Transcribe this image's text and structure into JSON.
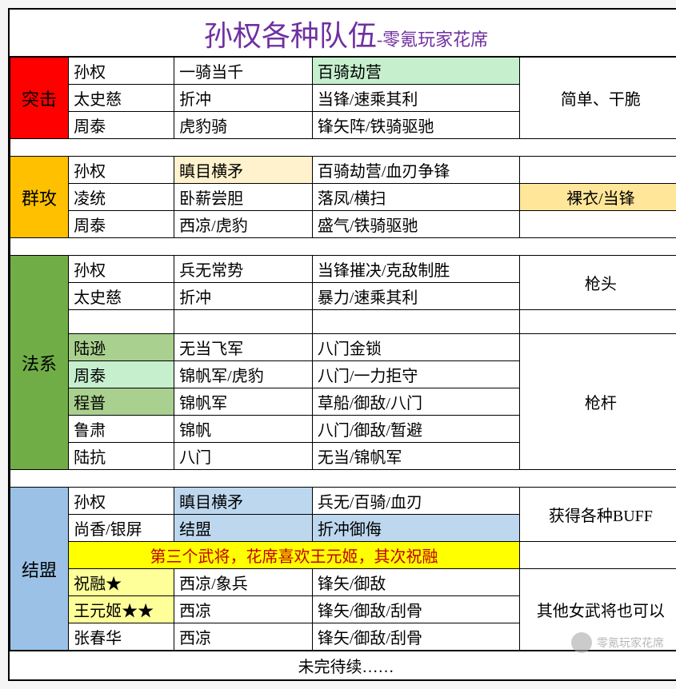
{
  "title": {
    "main": "孙权各种队伍",
    "sub": "-零氪玩家花席"
  },
  "colw": {
    "cat": 72,
    "hero": 130,
    "skill1": 170,
    "skill2": 255,
    "note": 200
  },
  "sections": [
    {
      "cat": "突击",
      "cat_bg": "bg-red",
      "rows": [
        {
          "hero": "孙权",
          "s1": "一骑当千",
          "s2": "百骑劫营",
          "s2_bg": "bg-green-lt"
        },
        {
          "hero": "太史慈",
          "s1": "折冲",
          "s2": "当锋/速乘其利"
        },
        {
          "hero": "周泰",
          "s1": "虎豹骑",
          "s2": "锋矢阵/铁骑驱驰"
        }
      ],
      "notes": [
        {
          "text": "简单、干脆",
          "span": 3
        }
      ]
    },
    {
      "cat": "群攻",
      "cat_bg": "bg-orange",
      "rows": [
        {
          "hero": "孙权",
          "s1": "瞋目横矛",
          "s1_bg": "bg-tan-lt",
          "s2": "百骑劫营/血刃争锋"
        },
        {
          "hero": "凌统",
          "s1": "卧薪尝胆",
          "s2": "落凤/横扫"
        },
        {
          "hero": "周泰",
          "s1": "西凉/虎豹",
          "s2": "盛气/铁骑驱驰"
        }
      ],
      "notes": [
        {
          "text": "",
          "span": 1
        },
        {
          "text": "裸衣/当锋",
          "span": 1,
          "bg": "bg-tan-lt2"
        },
        {
          "text": "",
          "span": 1
        }
      ]
    },
    {
      "cat": "法系",
      "cat_bg": "bg-green4",
      "rows": [
        {
          "hero": "孙权",
          "s1": "兵无常势",
          "s2": "当锋摧决/克敌制胜"
        },
        {
          "hero": "太史慈",
          "s1": "折冲",
          "s2": "暴力/速乘其利"
        },
        {
          "hero": "",
          "s1": "",
          "s2": ""
        },
        {
          "hero": "陆逊",
          "hero_bg": "bg-green-med",
          "s1": "无当飞军",
          "s2": "八门金锁"
        },
        {
          "hero": "周泰",
          "hero_bg": "bg-green-lt",
          "s1": "锦帆军/虎豹",
          "s2": "八门/一力拒守"
        },
        {
          "hero": "程普",
          "hero_bg": "bg-green-med",
          "s1": "锦帆军",
          "s2": "草船/御敌/八门"
        },
        {
          "hero": "鲁肃",
          "s1": "锦帆",
          "s2": "八门/御敌/暂避"
        },
        {
          "hero": "陆抗",
          "s1": "八门",
          "s2": "无当/锦帆军"
        }
      ],
      "notes": [
        {
          "text": "枪头",
          "span": 2
        },
        {
          "text": "",
          "span": 1
        },
        {
          "text": "枪杆",
          "span": 5
        }
      ]
    },
    {
      "cat": "结盟",
      "cat_bg": "bg-blue",
      "rows": [
        {
          "hero": "孙权",
          "s1": "瞋目横矛",
          "s1_bg": "bg-blue-lt",
          "s2": "兵无/百骑/血刃"
        },
        {
          "hero": "尚香/银屏",
          "s1": "结盟",
          "s1_bg": "bg-blue-lt",
          "s2": "折冲御侮",
          "s2_bg": "bg-blue-lt"
        },
        {
          "full": "第三个武将，花席喜欢王元姬，其次祝融",
          "full_bg": "yellow-row"
        },
        {
          "hero": "祝融★",
          "hero_bg": "bg-yellow-lt",
          "s1": "西凉/象兵",
          "s2": "锋矢/御敌"
        },
        {
          "hero": "王元姬★★",
          "hero_bg": "bg-yellow-lt",
          "s1": "西凉",
          "s2": "锋矢/御敌/刮骨"
        },
        {
          "hero": "张春华",
          "s1": "西凉",
          "s2": "锋矢/御敌/刮骨"
        }
      ],
      "notes": [
        {
          "text": "获得各种BUFF",
          "span": 2
        },
        {
          "skip_in_full": true
        },
        {
          "text": "其他女武将也可以",
          "span": 3
        }
      ]
    }
  ],
  "footer": "未完待续……",
  "watermark": "零氪玩家花席"
}
